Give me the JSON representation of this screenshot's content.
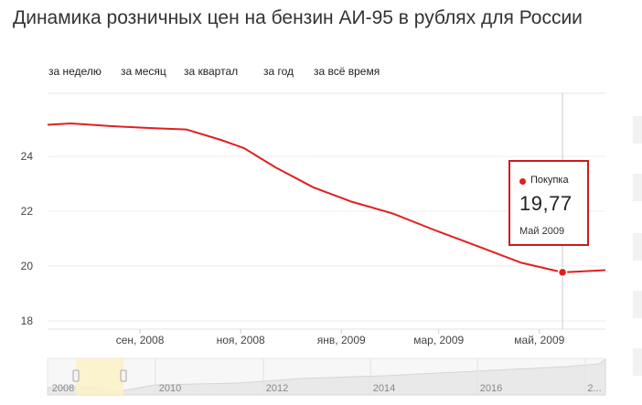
{
  "title": "Динамика розничных цен на бензин АИ-95 в рублях для России",
  "periods": [
    "за неделю",
    "за месяц",
    "за квартал",
    "за год",
    "за всё время"
  ],
  "chart_data": {
    "type": "line",
    "title": "Динамика розничных цен на бензин АИ-95 в рублях для России",
    "xlabel": "",
    "ylabel": "",
    "series": [
      {
        "name": "Покупка",
        "x": [
          "2008-07-07",
          "2008-07-21",
          "2008-08-15",
          "2008-09-08",
          "2008-09-29",
          "2008-10-20",
          "2008-11-03",
          "2008-11-22",
          "2008-12-15",
          "2009-01-07",
          "2009-02-01",
          "2009-02-27",
          "2009-03-27",
          "2009-04-20",
          "2009-05-15",
          "2009-06-10"
        ],
        "values": [
          25.15,
          25.2,
          25.1,
          25.03,
          24.98,
          24.6,
          24.3,
          23.6,
          22.87,
          22.35,
          21.92,
          21.3,
          20.67,
          20.12,
          19.77,
          19.85
        ],
        "color": "#e0201f"
      }
    ],
    "y_ticks": [
      "18",
      "20",
      "22",
      "24"
    ],
    "ylim": [
      17.7,
      26.3
    ],
    "x_ticks": [
      {
        "label": "сен, 2008",
        "date": "2008-09-01"
      },
      {
        "label": "ноя, 2008",
        "date": "2008-11-01"
      },
      {
        "label": "янв, 2009",
        "date": "2009-01-01"
      },
      {
        "label": "мар, 2009",
        "date": "2009-03-01"
      },
      {
        "label": "май, 2009",
        "date": "2009-05-01"
      }
    ],
    "xlim": [
      "2008-07-07",
      "2009-06-10"
    ],
    "highlighted_point": {
      "date": "2009-05-15",
      "value": 19.77
    },
    "grid": "horizontal",
    "navigator": {
      "labels": [
        "2008",
        "2010",
        "2012",
        "2014",
        "2016",
        "2..."
      ]
    }
  },
  "tooltip": {
    "series": "Покупка",
    "value": "19,77",
    "date": "Май 2009"
  }
}
